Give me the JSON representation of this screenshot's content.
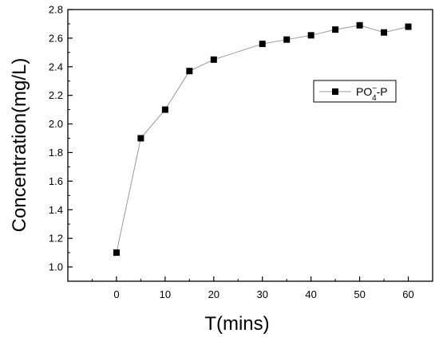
{
  "chart_data": {
    "type": "line",
    "xlabel": "T(mins)",
    "ylabel": "Concentration(mg/L)",
    "xlim": [
      -10,
      65
    ],
    "ylim": [
      0.9,
      2.8
    ],
    "x_ticks": [
      0,
      10,
      20,
      30,
      40,
      50,
      60
    ],
    "x_tick_labels": [
      "0",
      "10",
      "20",
      "30",
      "40",
      "50",
      "60"
    ],
    "y_ticks": [
      1.0,
      1.2,
      1.4,
      1.6,
      1.8,
      2.0,
      2.2,
      2.4,
      2.6,
      2.8
    ],
    "y_tick_labels": [
      "1.0",
      "1.2",
      "1.4",
      "1.6",
      "1.8",
      "2.0",
      "2.2",
      "2.4",
      "2.6",
      "2.8"
    ],
    "grid": false,
    "legend_position": "right-upper",
    "series": [
      {
        "name": "PO4-P",
        "name_parts": {
          "base": "PO",
          "superscript": "−",
          "subscript": "4",
          "suffix": "-P"
        },
        "marker": "square",
        "color": "#000000",
        "line_color": "#999999",
        "x": [
          0,
          5,
          10,
          15,
          20,
          30,
          35,
          40,
          45,
          50,
          55,
          60
        ],
        "y": [
          1.1,
          1.9,
          2.1,
          2.37,
          2.45,
          2.56,
          2.59,
          2.62,
          2.66,
          2.69,
          2.64,
          2.68
        ]
      }
    ]
  }
}
